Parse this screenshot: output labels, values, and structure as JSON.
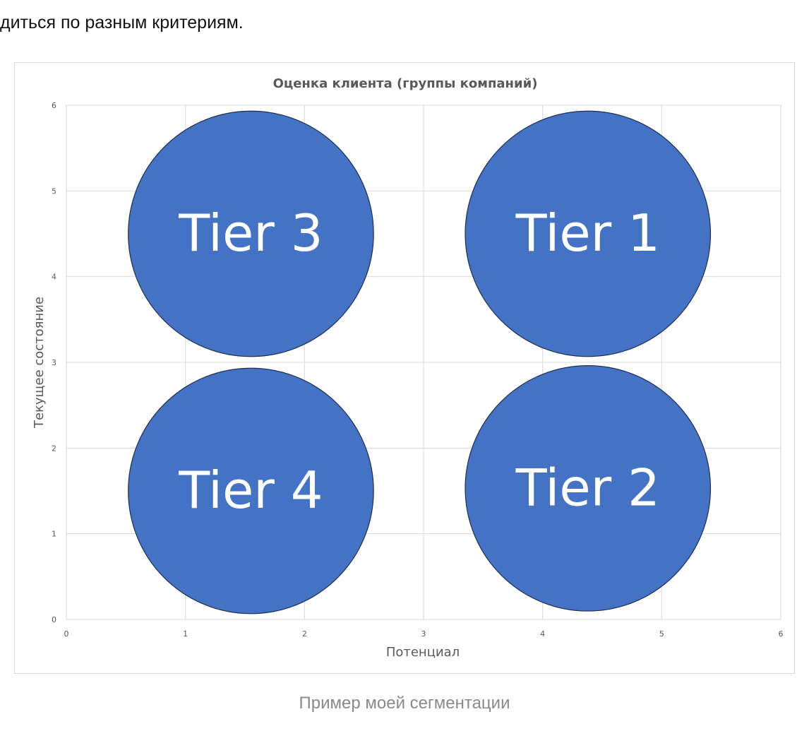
{
  "article": {
    "intro_fragment": "диться по разным критериям.",
    "figure_caption": "Пример моей сегментации"
  },
  "colors": {
    "bubble_fill": "#4472C4",
    "bubble_stroke": "#1f2f52",
    "grid": "#d9d9d9",
    "title": "#595959",
    "axis_text": "#595959",
    "bubble_text": "#ffffff"
  },
  "chart_data": {
    "type": "scatter",
    "title": "Оценка клиента (группы компаний)",
    "xlabel": "Потенциал",
    "ylabel": "Текущее состояние",
    "xlim": [
      0,
      6
    ],
    "ylim": [
      0,
      6
    ],
    "x_ticks": [
      "0",
      "1",
      "2",
      "3",
      "4",
      "5",
      "6"
    ],
    "y_ticks": [
      "0",
      "1",
      "2",
      "3",
      "4",
      "5",
      "6"
    ],
    "grid": true,
    "legend": "none",
    "points": [
      {
        "label": "Tier 3",
        "x": 1.55,
        "y": 4.5,
        "radius": 1.03
      },
      {
        "label": "Tier 1",
        "x": 4.38,
        "y": 4.5,
        "radius": 1.03
      },
      {
        "label": "Tier 4",
        "x": 1.55,
        "y": 1.5,
        "radius": 1.03
      },
      {
        "label": "Tier 2",
        "x": 4.38,
        "y": 1.53,
        "radius": 1.03
      }
    ]
  }
}
